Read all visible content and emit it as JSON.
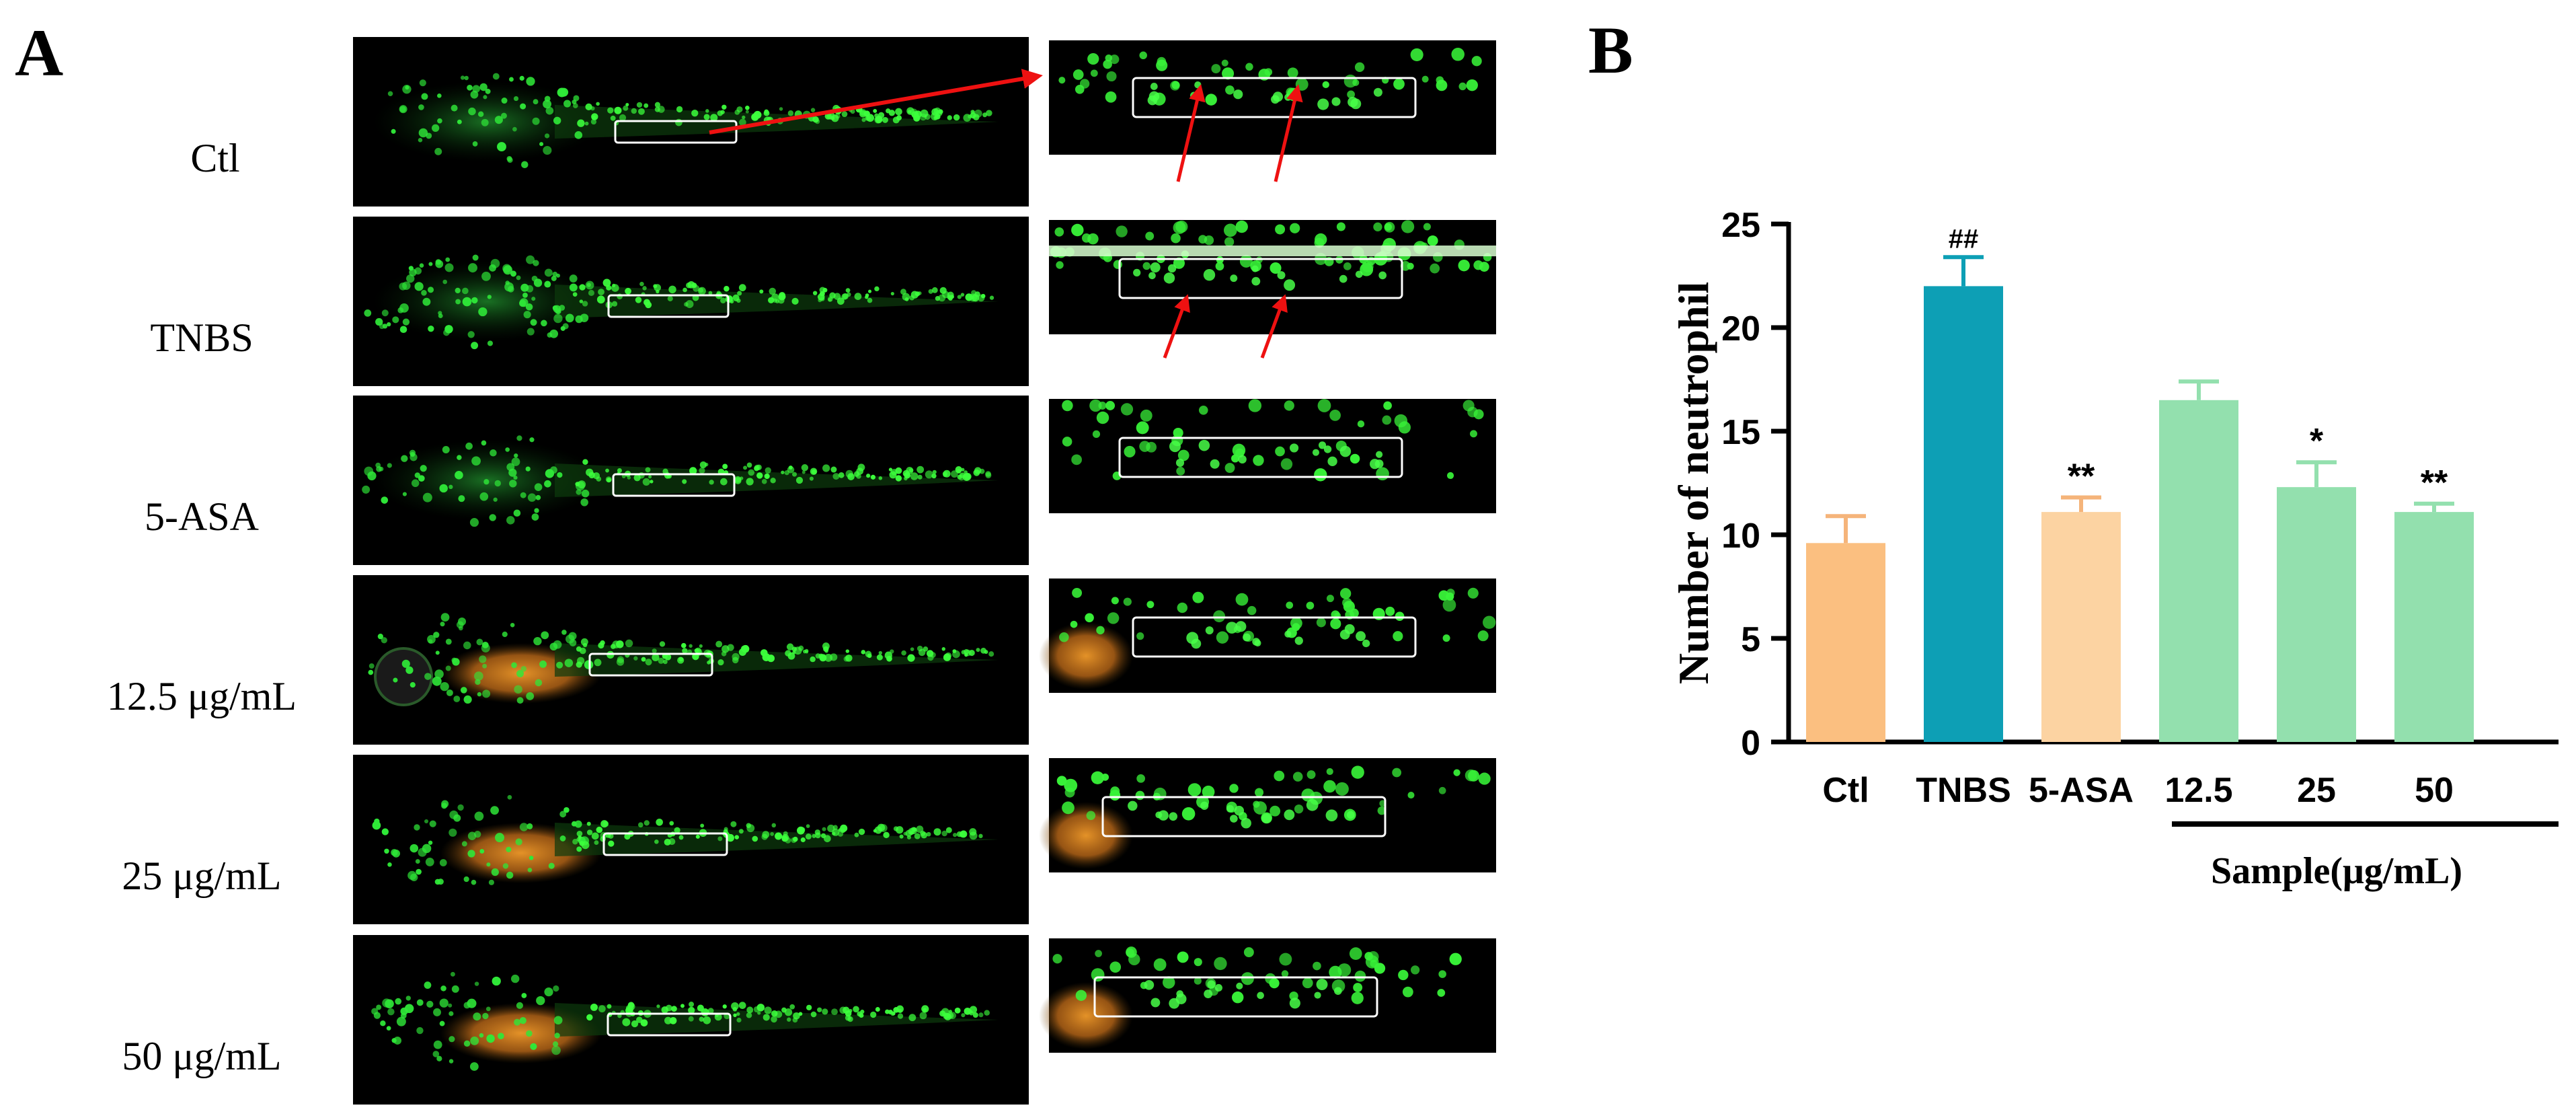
{
  "panel_a": {
    "letter": "A",
    "rows": [
      {
        "label": "Ctl",
        "has_arrows": true
      },
      {
        "label": "TNBS",
        "has_arrows": true
      },
      {
        "label": "5-ASA",
        "has_arrows": false
      },
      {
        "label": "12.5 μg/mL",
        "has_arrows": false
      },
      {
        "label": "25 μg/mL",
        "has_arrows": false
      },
      {
        "label": "50 μg/mL",
        "has_arrows": false
      }
    ],
    "colors": {
      "fluorescence": "#22ee33",
      "arrow": "#ee1111",
      "box": "#ffffff",
      "yolk": "#e08a1e"
    }
  },
  "panel_b": {
    "letter": "B",
    "group_label": "Sample(μg/mL)"
  },
  "chart_data": {
    "type": "bar",
    "title": "",
    "xlabel": "",
    "ylabel": "Number of neutrophil",
    "categories": [
      "Ctl",
      "TNBS",
      "5-ASA",
      "12.5",
      "25",
      "50"
    ],
    "values": [
      9.6,
      22.0,
      11.1,
      16.5,
      12.3,
      11.1
    ],
    "errors": [
      1.3,
      1.4,
      0.7,
      0.9,
      1.2,
      0.4
    ],
    "significance": [
      "",
      "##",
      "**",
      "",
      "*",
      "**"
    ],
    "colors": [
      "#fbbf80",
      "#0d9fb5",
      "#fcd3a2",
      "#93e0ae",
      "#93e0ae",
      "#93e0ae"
    ],
    "error_colors": [
      "#f5b47a",
      "#0d9fb5",
      "#f5b47a",
      "#93e0ae",
      "#93e0ae",
      "#93e0ae"
    ],
    "ylim": [
      0,
      25
    ],
    "yticks": [
      0,
      5,
      10,
      15,
      20,
      25
    ],
    "grid": false,
    "legend": "none"
  }
}
